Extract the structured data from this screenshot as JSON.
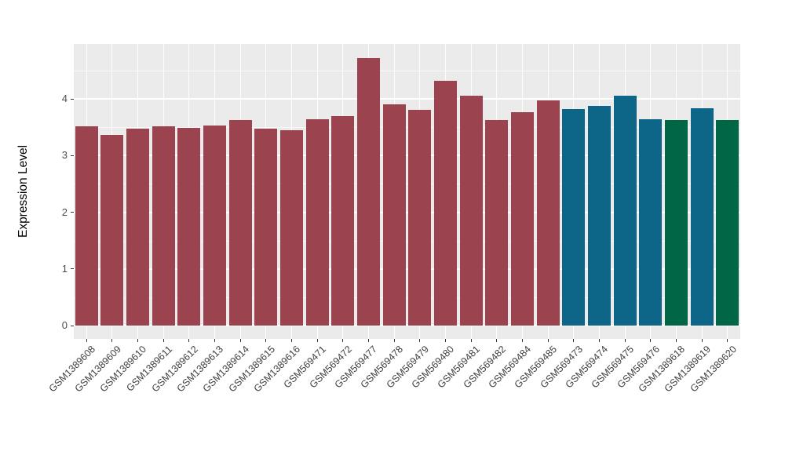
{
  "chart_data": {
    "type": "bar",
    "title": "",
    "xlabel": "",
    "ylabel": "Expression Level",
    "legend": "none",
    "grid": true,
    "panel_bg": "#EBEBEB",
    "gridline_color": "#FFFFFF",
    "axis_text_color": "#4D4D4D",
    "yticks": [
      0,
      1,
      2,
      3,
      4
    ],
    "ylim": [
      0,
      4.97
    ],
    "categories": [
      "GSM1389608",
      "GSM1389609",
      "GSM1389610",
      "GSM1389611",
      "GSM1389612",
      "GSM1389613",
      "GSM1389614",
      "GSM1389615",
      "GSM1389616",
      "GSM569471",
      "GSM569472",
      "GSM569477",
      "GSM569478",
      "GSM569479",
      "GSM569480",
      "GSM569481",
      "GSM569482",
      "GSM569484",
      "GSM569485",
      "GSM569473",
      "GSM569474",
      "GSM569475",
      "GSM569476",
      "GSM1389618",
      "GSM1389619",
      "GSM1389620"
    ],
    "values": [
      3.52,
      3.37,
      3.47,
      3.52,
      3.49,
      3.53,
      3.63,
      3.47,
      3.44,
      3.64,
      3.7,
      4.72,
      3.91,
      3.8,
      4.32,
      4.06,
      3.62,
      3.77,
      3.97,
      3.82,
      3.88,
      4.06,
      3.64,
      3.63,
      3.84,
      3.63
    ],
    "bar_colors": [
      "#9B4450",
      "#9B4450",
      "#9B4450",
      "#9B4450",
      "#9B4450",
      "#9B4450",
      "#9B4450",
      "#9B4450",
      "#9B4450",
      "#9B4450",
      "#9B4450",
      "#9B4450",
      "#9B4450",
      "#9B4450",
      "#9B4450",
      "#9B4450",
      "#9B4450",
      "#9B4450",
      "#9B4450",
      "#0D6587",
      "#0D6587",
      "#0D6587",
      "#0D6587",
      "#006646",
      "#0D6587",
      "#006646"
    ],
    "color_palette": {
      "maroon": "#9B4450",
      "teal": "#0D6587",
      "green": "#006646"
    }
  }
}
